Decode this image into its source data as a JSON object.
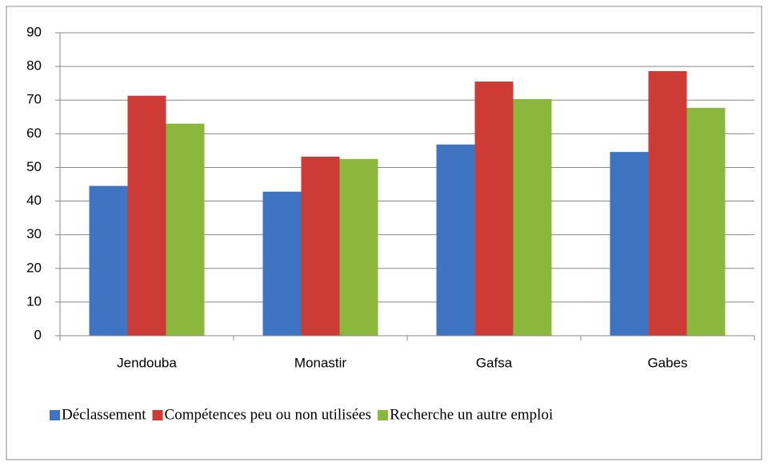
{
  "chart_data": {
    "type": "bar",
    "categories": [
      "Jendouba",
      "Monastir",
      "Gafsa",
      "Gabes"
    ],
    "series": [
      {
        "name": "Déclassement",
        "color": "#3f74c2",
        "values": [
          44.5,
          42.8,
          56.8,
          54.6
        ]
      },
      {
        "name": "Compétences peu ou non utilisées",
        "color": "#cc3b36",
        "values": [
          71.3,
          53.2,
          75.5,
          78.6
        ]
      },
      {
        "name": "Recherche un autre emploi",
        "color": "#8bb83c",
        "values": [
          63,
          52.5,
          70.3,
          67.7
        ]
      }
    ],
    "ylim": [
      0,
      90
    ],
    "yticks": [
      0,
      10,
      20,
      30,
      40,
      50,
      60,
      70,
      80,
      90
    ],
    "grid": true,
    "legend": "bottom"
  }
}
